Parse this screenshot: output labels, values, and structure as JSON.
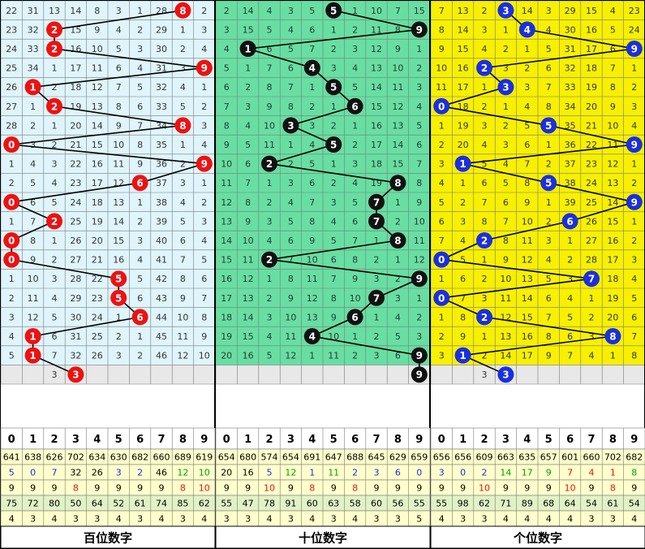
{
  "chart_data": {
    "type": "table",
    "digit_headers": [
      "0",
      "1",
      "2",
      "3",
      "4",
      "5",
      "6",
      "7",
      "8",
      "9"
    ],
    "section_labels": [
      "百位数字",
      "十位数字",
      "个位数字"
    ],
    "colors": {
      "hundreds_bg": "#dff5fb",
      "tens_bg": "#67dfa2",
      "units_bg": "#f7f000",
      "hundreds_ball": "#ee1111",
      "tens_ball": "#111111",
      "units_ball": "#1a2fe0",
      "row_blank": "#e8e8e8",
      "stat_yellow": "#ffffcc",
      "stat_green": "#e1f2c6",
      "grid": "#7a7a7a"
    },
    "sections": [
      {
        "name": "hundreds",
        "picks": [
          8,
          2,
          2,
          9,
          1,
          2,
          8,
          0,
          9,
          6,
          0,
          2,
          0,
          0,
          5,
          5,
          6,
          1,
          1,
          3
        ],
        "rows": [
          [
            "22",
            "31",
            "13",
            "14",
            "8",
            "3",
            "1",
            "28",
            "8",
            "2"
          ],
          [
            "23",
            "32",
            "2",
            "15",
            "9",
            "4",
            "2",
            "29",
            "1",
            "3"
          ],
          [
            "24",
            "33",
            "2",
            "16",
            "10",
            "5",
            "3",
            "30",
            "2",
            "4"
          ],
          [
            "25",
            "34",
            "1",
            "17",
            "11",
            "6",
            "4",
            "31",
            "3",
            "9"
          ],
          [
            "26",
            "1",
            "2",
            "18",
            "12",
            "7",
            "5",
            "32",
            "4",
            "1"
          ],
          [
            "27",
            "1",
            "2",
            "19",
            "13",
            "8",
            "6",
            "33",
            "5",
            "2"
          ],
          [
            "28",
            "2",
            "1",
            "20",
            "14",
            "9",
            "7",
            "34",
            "8",
            "3"
          ],
          [
            "0",
            "3",
            "2",
            "21",
            "15",
            "10",
            "8",
            "35",
            "1",
            "4"
          ],
          [
            "1",
            "4",
            "3",
            "22",
            "16",
            "11",
            "9",
            "36",
            "2",
            "9"
          ],
          [
            "2",
            "5",
            "4",
            "23",
            "17",
            "12",
            "6",
            "37",
            "3",
            "1"
          ],
          [
            "0",
            "6",
            "5",
            "24",
            "18",
            "13",
            "1",
            "38",
            "4",
            "2"
          ],
          [
            "1",
            "7",
            "2",
            "25",
            "19",
            "14",
            "2",
            "39",
            "5",
            "3"
          ],
          [
            "0",
            "8",
            "1",
            "26",
            "20",
            "15",
            "3",
            "40",
            "6",
            "4"
          ],
          [
            "0",
            "9",
            "2",
            "27",
            "21",
            "16",
            "4",
            "41",
            "7",
            "5"
          ],
          [
            "1",
            "10",
            "3",
            "28",
            "22",
            "5",
            "5",
            "42",
            "8",
            "6"
          ],
          [
            "2",
            "11",
            "4",
            "29",
            "23",
            "5",
            "6",
            "43",
            "9",
            "7"
          ],
          [
            "3",
            "12",
            "5",
            "30",
            "24",
            "1",
            "6",
            "44",
            "10",
            "8"
          ],
          [
            "4",
            "1",
            "6",
            "31",
            "25",
            "2",
            "1",
            "45",
            "11",
            "9"
          ],
          [
            "5",
            "1",
            "7",
            "32",
            "26",
            "3",
            "2",
            "46",
            "12",
            "10"
          ],
          [
            "",
            "",
            "3",
            "",
            "",
            "",
            "",
            "",
            "",
            ""
          ]
        ],
        "stats": [
          [
            "641",
            "638",
            "626",
            "702",
            "634",
            "630",
            "682",
            "660",
            "689",
            "619"
          ],
          [
            "5",
            "0",
            "7",
            "32",
            "26",
            "3",
            "2",
            "46",
            "12",
            "10"
          ],
          [
            "9",
            "9",
            "9",
            "8",
            "9",
            "9",
            "9",
            "9",
            "8",
            "10"
          ],
          [
            "75",
            "72",
            "80",
            "50",
            "64",
            "52",
            "61",
            "74",
            "85",
            "62"
          ],
          [
            "4",
            "3",
            "4",
            "3",
            "3",
            "4",
            "3",
            "4",
            "3",
            "4"
          ]
        ]
      },
      {
        "name": "tens",
        "picks": [
          5,
          9,
          1,
          4,
          5,
          6,
          3,
          5,
          2,
          8,
          7,
          7,
          8,
          2,
          9,
          7,
          6,
          4,
          9,
          9
        ],
        "rows": [
          [
            "2",
            "14",
            "4",
            "3",
            "5",
            "5",
            "1",
            "10",
            "7",
            "15"
          ],
          [
            "3",
            "15",
            "5",
            "4",
            "6",
            "1",
            "2",
            "11",
            "8",
            "9"
          ],
          [
            "4",
            "1",
            "6",
            "5",
            "7",
            "2",
            "3",
            "12",
            "9",
            "1"
          ],
          [
            "5",
            "1",
            "7",
            "6",
            "4",
            "3",
            "4",
            "13",
            "10",
            "2"
          ],
          [
            "6",
            "2",
            "8",
            "7",
            "1",
            "5",
            "5",
            "14",
            "11",
            "3"
          ],
          [
            "7",
            "3",
            "9",
            "8",
            "2",
            "1",
            "6",
            "15",
            "12",
            "4"
          ],
          [
            "8",
            "4",
            "10",
            "3",
            "3",
            "2",
            "1",
            "16",
            "13",
            "5"
          ],
          [
            "9",
            "5",
            "11",
            "1",
            "4",
            "5",
            "2",
            "17",
            "14",
            "6"
          ],
          [
            "10",
            "6",
            "2",
            "2",
            "5",
            "1",
            "3",
            "18",
            "15",
            "7"
          ],
          [
            "11",
            "7",
            "1",
            "3",
            "6",
            "2",
            "4",
            "19",
            "8",
            "8"
          ],
          [
            "12",
            "8",
            "2",
            "4",
            "7",
            "3",
            "5",
            "7",
            "1",
            "9"
          ],
          [
            "13",
            "9",
            "3",
            "5",
            "8",
            "4",
            "6",
            "7",
            "2",
            "10"
          ],
          [
            "14",
            "10",
            "4",
            "6",
            "9",
            "5",
            "7",
            "1",
            "8",
            "11"
          ],
          [
            "15",
            "11",
            "2",
            "7",
            "10",
            "6",
            "8",
            "2",
            "1",
            "12"
          ],
          [
            "16",
            "12",
            "1",
            "8",
            "11",
            "7",
            "9",
            "3",
            "2",
            "9"
          ],
          [
            "17",
            "13",
            "2",
            "9",
            "12",
            "8",
            "10",
            "7",
            "3",
            "1"
          ],
          [
            "18",
            "14",
            "3",
            "10",
            "13",
            "9",
            "6",
            "1",
            "4",
            "2"
          ],
          [
            "19",
            "15",
            "4",
            "11",
            "4",
            "10",
            "1",
            "2",
            "5",
            "3"
          ],
          [
            "20",
            "16",
            "5",
            "12",
            "1",
            "11",
            "2",
            "3",
            "6",
            "9"
          ],
          [
            "",
            "",
            "",
            "",
            "",
            "",
            "",
            "",
            "",
            "9"
          ]
        ],
        "stats": [
          [
            "654",
            "680",
            "574",
            "654",
            "691",
            "647",
            "688",
            "645",
            "629",
            "659"
          ],
          [
            "20",
            "16",
            "5",
            "12",
            "1",
            "11",
            "2",
            "3",
            "6",
            "0"
          ],
          [
            "9",
            "9",
            "10",
            "9",
            "8",
            "9",
            "8",
            "9",
            "9",
            "9"
          ],
          [
            "55",
            "47",
            "78",
            "91",
            "60",
            "63",
            "58",
            "60",
            "56",
            "55"
          ],
          [
            "3",
            "3",
            "4",
            "3",
            "4",
            "3",
            "4",
            "3",
            "3",
            "5"
          ]
        ]
      },
      {
        "name": "units",
        "picks": [
          3,
          4,
          9,
          2,
          3,
          0,
          5,
          9,
          1,
          5,
          9,
          6,
          2,
          0,
          7,
          0,
          2,
          8,
          1,
          3
        ],
        "rows": [
          [
            "7",
            "13",
            "2",
            "3",
            "14",
            "3",
            "29",
            "15",
            "4",
            "23"
          ],
          [
            "8",
            "14",
            "3",
            "1",
            "4",
            "4",
            "30",
            "16",
            "5",
            "24"
          ],
          [
            "9",
            "15",
            "4",
            "2",
            "1",
            "5",
            "31",
            "17",
            "6",
            "9"
          ],
          [
            "10",
            "16",
            "2",
            "3",
            "2",
            "6",
            "32",
            "18",
            "7",
            "1"
          ],
          [
            "11",
            "17",
            "1",
            "3",
            "3",
            "7",
            "33",
            "19",
            "8",
            "2"
          ],
          [
            "0",
            "18",
            "2",
            "1",
            "4",
            "8",
            "34",
            "20",
            "9",
            "3"
          ],
          [
            "1",
            "19",
            "3",
            "2",
            "5",
            "5",
            "35",
            "21",
            "10",
            "4"
          ],
          [
            "2",
            "20",
            "4",
            "3",
            "6",
            "1",
            "36",
            "22",
            "11",
            "9"
          ],
          [
            "3",
            "1",
            "5",
            "4",
            "7",
            "2",
            "37",
            "23",
            "12",
            "1"
          ],
          [
            "4",
            "1",
            "6",
            "5",
            "8",
            "5",
            "38",
            "24",
            "13",
            "2"
          ],
          [
            "5",
            "2",
            "7",
            "6",
            "9",
            "1",
            "39",
            "25",
            "14",
            "9"
          ],
          [
            "6",
            "3",
            "8",
            "7",
            "10",
            "2",
            "6",
            "26",
            "15",
            "1"
          ],
          [
            "7",
            "4",
            "2",
            "8",
            "11",
            "3",
            "1",
            "27",
            "16",
            "2"
          ],
          [
            "0",
            "5",
            "1",
            "9",
            "12",
            "4",
            "2",
            "28",
            "17",
            "3"
          ],
          [
            "1",
            "6",
            "2",
            "10",
            "13",
            "5",
            "3",
            "7",
            "18",
            "4"
          ],
          [
            "0",
            "7",
            "3",
            "11",
            "14",
            "6",
            "4",
            "1",
            "19",
            "5"
          ],
          [
            "1",
            "8",
            "2",
            "12",
            "15",
            "7",
            "5",
            "2",
            "20",
            "6"
          ],
          [
            "2",
            "9",
            "1",
            "13",
            "16",
            "8",
            "6",
            "3",
            "8",
            "7"
          ],
          [
            "3",
            "1",
            "2",
            "14",
            "17",
            "9",
            "7",
            "4",
            "1",
            "8"
          ],
          [
            "",
            "",
            "3",
            "",
            "",
            "",
            "",
            "",
            "",
            ""
          ]
        ],
        "stats": [
          [
            "656",
            "656",
            "609",
            "663",
            "635",
            "657",
            "601",
            "660",
            "702",
            "682"
          ],
          [
            "3",
            "0",
            "2",
            "14",
            "17",
            "9",
            "7",
            "4",
            "1",
            "8"
          ],
          [
            "9",
            "9",
            "10",
            "9",
            "9",
            "9",
            "10",
            "9",
            "8",
            "9"
          ],
          [
            "55",
            "98",
            "62",
            "71",
            "89",
            "68",
            "64",
            "54",
            "61",
            "54"
          ],
          [
            "4",
            "3",
            "3",
            "4",
            "4",
            "4",
            "4",
            "3",
            "3",
            "4"
          ]
        ]
      }
    ],
    "stat_row_colors": [
      [
        "#000000",
        "#000000",
        "#000000",
        "#000000",
        "#000000",
        "#000000",
        "#000000",
        "#000000",
        "#000000",
        "#000000"
      ],
      [
        "#1a2fe0",
        "#1a2fe0",
        "#1a2fe0",
        "#000000",
        "#000000",
        "#1a2fe0",
        "#1a2fe0",
        "#000000",
        "#00a000",
        "#1a2fe0"
      ],
      [
        "#000000",
        "#000000",
        "#000000",
        "#ee1111",
        "#ee1111",
        "#000000",
        "#000000",
        "#ee1111",
        "#ee1111",
        "#ee1111"
      ],
      [
        "#000000",
        "#000000",
        "#000000",
        "#000000",
        "#000000",
        "#000000",
        "#000000",
        "#000000",
        "#000000",
        "#000000"
      ],
      [
        "#000000",
        "#000000",
        "#000000",
        "#000000",
        "#000000",
        "#000000",
        "#000000",
        "#000000",
        "#000000",
        "#000000"
      ]
    ]
  }
}
